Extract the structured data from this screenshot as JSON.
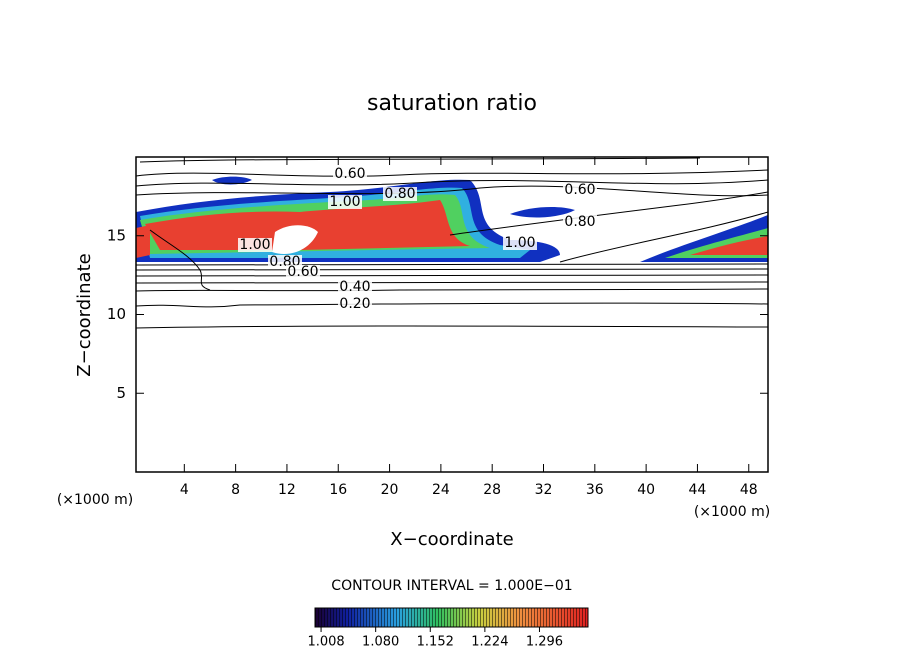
{
  "chart_data": {
    "type": "contour",
    "title": "saturation ratio",
    "x_label": "X−coordinate",
    "y_label": "Z−coordinate",
    "x_unit": "(×1000 m)",
    "x_unit_right": "(×1000 m)",
    "xlim": [
      0,
      49.5
    ],
    "ylim": [
      0,
      20
    ],
    "xticks": [
      4,
      8,
      12,
      16,
      20,
      24,
      28,
      32,
      36,
      40,
      44,
      48
    ],
    "yticks": [
      5,
      10,
      15
    ],
    "contour_interval": "CONTOUR INTERVAL = 1.000E−01",
    "contour_labels": [
      {
        "value": 0.6,
        "label": "0.60"
      },
      {
        "value": 1.0,
        "label": "1.00"
      },
      {
        "value": 0.8,
        "label": "0.80"
      },
      {
        "value": 0.6,
        "label": "0.60"
      },
      {
        "value": 0.8,
        "label": "0.80"
      },
      {
        "value": 1.0,
        "label": "1.00"
      },
      {
        "value": 1.0,
        "label": "1.00"
      },
      {
        "value": 0.8,
        "label": "0.80"
      },
      {
        "value": 0.6,
        "label": "0.60"
      },
      {
        "value": 0.4,
        "label": "0.40"
      },
      {
        "value": 0.2,
        "label": "0.20"
      }
    ],
    "colorbar_lim": [
      1.0,
      1.36
    ],
    "colorbar_ticks": [
      {
        "value": 1.008,
        "label": "1.008"
      },
      {
        "value": 1.08,
        "label": "1.080"
      },
      {
        "value": 1.152,
        "label": "1.152"
      },
      {
        "value": 1.224,
        "label": "1.224"
      },
      {
        "value": 1.296,
        "label": "1.296"
      }
    ]
  }
}
